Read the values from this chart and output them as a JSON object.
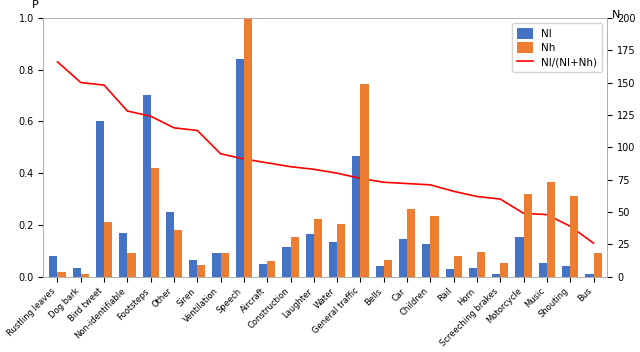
{
  "categories": [
    "Rustling leaves",
    "Dog bark",
    "Bird tweet",
    "Non-identifiable",
    "Footsteps",
    "Other",
    "Siren",
    "Ventilation",
    "Speech",
    "Aircraft",
    "Construction",
    "Laughter",
    "Water",
    "General traffic",
    "Bells",
    "Car",
    "Children",
    "Rail",
    "Horn",
    "Screeching brakes",
    "Motorcycle",
    "Music",
    "Shouting",
    "Bus"
  ],
  "Nl": [
    0.08,
    0.035,
    0.6,
    0.17,
    0.7,
    0.25,
    0.065,
    0.09,
    0.84,
    0.05,
    0.115,
    0.165,
    0.135,
    0.465,
    0.04,
    0.145,
    0.125,
    0.03,
    0.035,
    0.01,
    0.155,
    0.055,
    0.04,
    0.01
  ],
  "Nh": [
    4,
    2,
    42,
    18,
    84,
    36,
    9,
    18,
    200,
    12,
    31,
    45,
    41,
    149,
    13,
    52,
    47,
    16,
    19,
    11,
    64,
    73,
    62,
    18
  ],
  "ratio": [
    0.83,
    0.75,
    0.74,
    0.64,
    0.62,
    0.575,
    0.565,
    0.475,
    0.455,
    0.44,
    0.425,
    0.415,
    0.4,
    0.38,
    0.365,
    0.36,
    0.355,
    0.33,
    0.31,
    0.3,
    0.245,
    0.24,
    0.195,
    0.13
  ],
  "bar_color_Nl": "#4472c4",
  "bar_color_Nh": "#ed7d31",
  "line_color": "#ff0000",
  "ylabel_left": "P",
  "ylabel_right": "N",
  "ylim_left": [
    0,
    1.0
  ],
  "ylim_right": [
    0,
    200
  ],
  "yticks_left": [
    0.0,
    0.2,
    0.4,
    0.6,
    0.8,
    1.0
  ],
  "yticks_right": [
    0,
    25,
    50,
    75,
    100,
    125,
    150,
    175,
    200
  ],
  "legend_labels": [
    "Nl",
    "Nh",
    "Nl/(Nl+Nh)"
  ],
  "background_color": "#ffffff",
  "bar_width": 0.35
}
